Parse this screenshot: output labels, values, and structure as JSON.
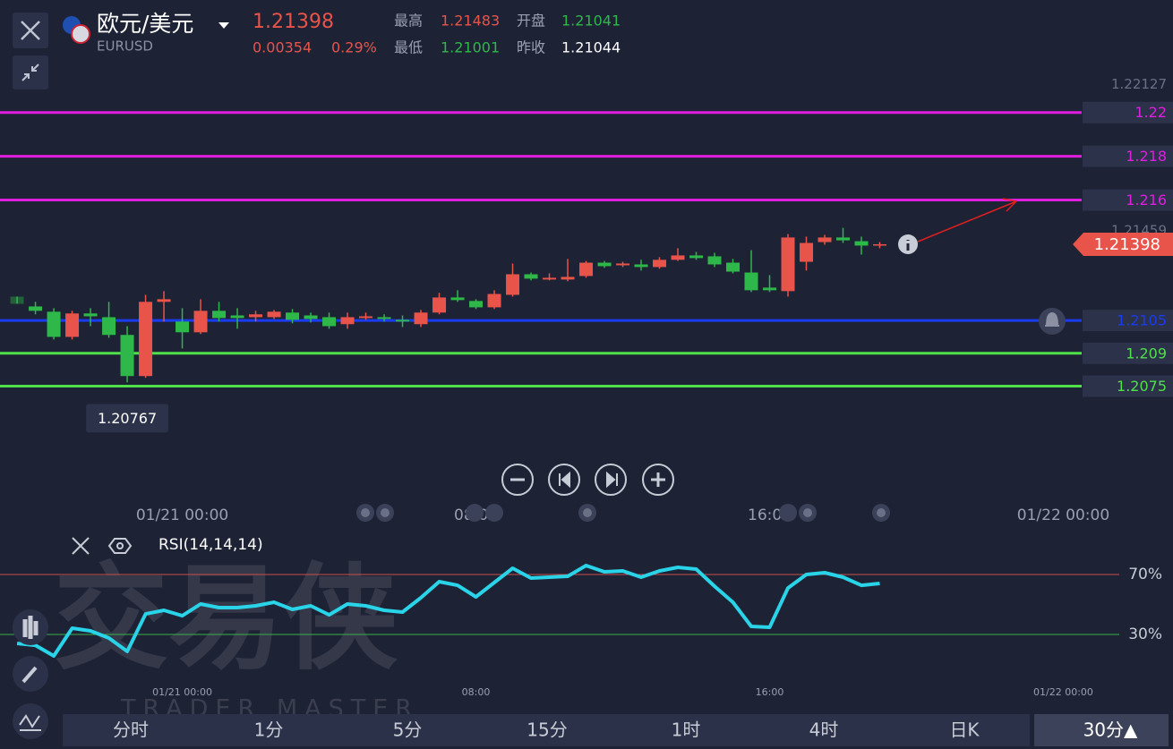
{
  "header": {
    "symbol": "欧元/美元",
    "code": "EURUSD",
    "price": "1.21398",
    "change": "0.00354",
    "change_pct": "0.29%",
    "high_label": "最高",
    "high": "1.21483",
    "open_label": "开盘",
    "open": "1.21041",
    "low_label": "最低",
    "low": "1.21001",
    "prev_label": "昨收",
    "prev": "1.21044"
  },
  "tabs": [
    "分时",
    "1分",
    "5分",
    "15分",
    "1时",
    "4时",
    "日K",
    "30分▲"
  ],
  "watermark": {
    "title": "交易侠",
    "subtitle": "TRADER MASTER"
  },
  "chart_data": [
    {
      "type": "candlestick",
      "up_color": "#e8544a",
      "down_color": "#2fb84a",
      "open": [
        1.21159,
        1.21114,
        1.2109,
        1.20975,
        1.21082,
        1.21065,
        1.20984,
        1.20796,
        1.21135,
        1.21045,
        1.20996,
        1.21094,
        1.21073,
        1.21065,
        1.21065,
        1.21086,
        1.21073,
        1.21065,
        1.21033,
        1.21061,
        1.21065,
        1.21053,
        1.21033,
        1.21086,
        1.21155,
        1.21139,
        1.2111,
        1.21167,
        1.21261,
        1.21237,
        1.21237,
        1.21253,
        1.21314,
        1.21302,
        1.21306,
        1.21294,
        1.21327,
        1.21347,
        1.21343,
        1.21314,
        1.21269,
        1.212,
        1.21184,
        1.21318,
        1.21408,
        1.21429,
        1.21412,
        1.21392
      ],
      "high": [
        1.21159,
        1.21135,
        1.21106,
        1.21094,
        1.21106,
        1.21135,
        1.21024,
        1.21167,
        1.21184,
        1.21106,
        1.21147,
        1.21135,
        1.21106,
        1.21094,
        1.21098,
        1.21102,
        1.21086,
        1.21086,
        1.21086,
        1.21086,
        1.21078,
        1.21073,
        1.21098,
        1.21176,
        1.21188,
        1.21147,
        1.21188,
        1.2131,
        1.21269,
        1.21265,
        1.21331,
        1.21322,
        1.21322,
        1.21318,
        1.21327,
        1.21339,
        1.2138,
        1.21363,
        1.21359,
        1.21331,
        1.21371,
        1.21257,
        1.21445,
        1.21433,
        1.21441,
        1.21473,
        1.21433,
        1.21408
      ],
      "low": [
        1.21126,
        1.21078,
        1.20963,
        1.20963,
        1.21024,
        1.20971,
        1.20767,
        1.20788,
        1.21045,
        1.20922,
        1.20988,
        1.21045,
        1.21012,
        1.21045,
        1.21057,
        1.21037,
        1.21041,
        1.21012,
        1.21012,
        1.21053,
        1.21045,
        1.2102,
        1.2102,
        1.21078,
        1.21135,
        1.21102,
        1.21102,
        1.21159,
        1.21233,
        1.21233,
        1.21229,
        1.21245,
        1.2129,
        1.21294,
        1.21278,
        1.21286,
        1.21322,
        1.21327,
        1.21294,
        1.21265,
        1.2118,
        1.2118,
        1.21159,
        1.21278,
        1.21396,
        1.21404,
        1.21351,
        1.2138
      ],
      "close": [
        1.21126,
        1.21094,
        1.20975,
        1.21082,
        1.21069,
        1.20984,
        1.20796,
        1.21135,
        1.21147,
        1.20996,
        1.21094,
        1.21061,
        1.21061,
        1.21078,
        1.2109,
        1.21053,
        1.21057,
        1.21024,
        1.21065,
        1.21069,
        1.21057,
        1.21045,
        1.21086,
        1.21155,
        1.21143,
        1.2111,
        1.21171,
        1.21261,
        1.21241,
        1.21245,
        1.21249,
        1.21314,
        1.21298,
        1.2131,
        1.21294,
        1.21327,
        1.21347,
        1.21335,
        1.21306,
        1.21273,
        1.21188,
        1.21188,
        1.21429,
        1.21404,
        1.21429,
        1.21416,
        1.21392,
        1.21398
      ],
      "ylim": [
        1.2047,
        1.2215
      ],
      "xlim": [
        -0.93,
        60.05
      ],
      "xticks": [
        {
          "value": 9,
          "label": "01/21 00:00"
        },
        {
          "value": 25,
          "label": "08:00"
        },
        {
          "value": 41,
          "label": "16:00"
        },
        {
          "value": 57,
          "label": "01/22 00:00"
        }
      ],
      "levels": [
        {
          "value": 1.22,
          "color": "#e01ee0"
        },
        {
          "value": 1.218,
          "color": "#e01ee0"
        },
        {
          "value": 1.216,
          "color": "#e01ee0"
        },
        {
          "value": 1.2105,
          "color": "#1a3cf0"
        },
        {
          "value": 1.209,
          "color": "#4fe04a"
        },
        {
          "value": 1.2075,
          "color": "#4fe04a"
        }
      ],
      "axis_labels": [
        1.22127,
        1.21459
      ],
      "last": 1.21398,
      "low_annotation": 1.20767
    },
    {
      "type": "line",
      "title": "RSI(14,14,14)",
      "color": "#2ad4e8",
      "values": [
        24.0,
        22.8,
        15.7,
        34.2,
        32.4,
        27.6,
        18.7,
        43.7,
        46.1,
        42.5,
        50.3,
        47.9,
        47.9,
        49.1,
        51.5,
        46.7,
        49.1,
        43.1,
        50.3,
        49.1,
        46.1,
        44.9,
        54.5,
        65.2,
        62.8,
        55.1,
        64.6,
        74.2,
        67.6,
        68.2,
        68.8,
        76.0,
        71.8,
        72.4,
        68.2,
        72.4,
        74.8,
        73.6,
        62.2,
        51.5,
        35.4,
        34.8,
        61.0,
        70.0,
        71.2,
        68.2,
        62.8,
        64.0
      ],
      "ylim": [
        0,
        100
      ],
      "yticks": [
        {
          "value": 30,
          "label": "30%"
        },
        {
          "value": 70,
          "label": "70%"
        }
      ],
      "grid_colors": [
        "#3db04a",
        "#c9504a"
      ],
      "xlim": [
        -0.93,
        60.05
      ],
      "xticks": [
        {
          "value": 9,
          "label": "01/21 00:00"
        },
        {
          "value": 25,
          "label": "08:00"
        },
        {
          "value": 41,
          "label": "16:00"
        },
        {
          "value": 57,
          "label": "01/22 00:00"
        }
      ]
    }
  ]
}
